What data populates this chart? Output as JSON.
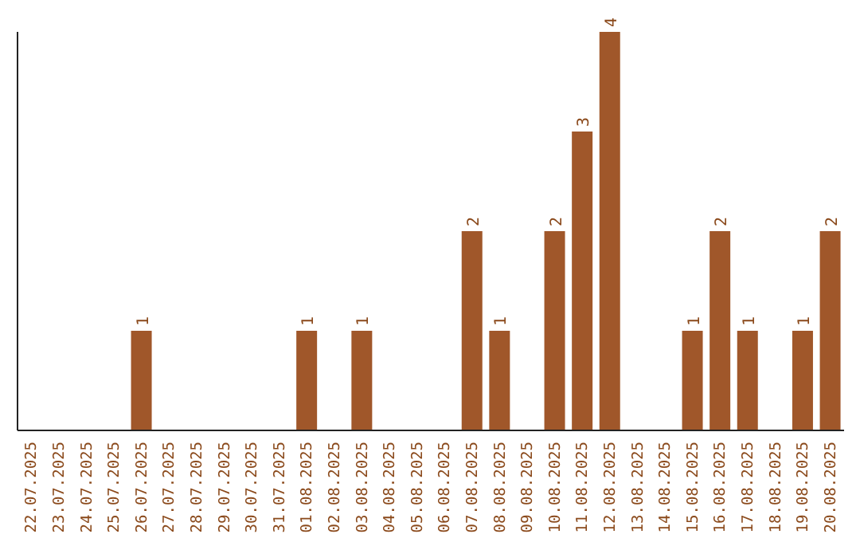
{
  "chart_data": {
    "type": "bar",
    "categories": [
      "22.07.2025",
      "23.07.2025",
      "24.07.2025",
      "25.07.2025",
      "26.07.2025",
      "27.07.2025",
      "28.07.2025",
      "29.07.2025",
      "30.07.2025",
      "31.07.2025",
      "01.08.2025",
      "02.08.2025",
      "03.08.2025",
      "04.08.2025",
      "05.08.2025",
      "06.08.2025",
      "07.08.2025",
      "08.08.2025",
      "09.08.2025",
      "10.08.2025",
      "11.08.2025",
      "12.08.2025",
      "13.08.2025",
      "14.08.2025",
      "15.08.2025",
      "16.08.2025",
      "17.08.2025",
      "18.08.2025",
      "19.08.2025",
      "20.08.2025"
    ],
    "values": [
      0,
      0,
      0,
      0,
      1,
      0,
      0,
      0,
      0,
      0,
      1,
      0,
      1,
      0,
      0,
      0,
      2,
      1,
      0,
      2,
      3,
      4,
      0,
      0,
      1,
      2,
      1,
      0,
      1,
      2
    ],
    "value_labels": [
      null,
      null,
      null,
      null,
      "1",
      null,
      null,
      null,
      null,
      null,
      "1",
      null,
      "1",
      null,
      null,
      null,
      "2",
      "1",
      null,
      "2",
      "3",
      "4",
      null,
      null,
      "1",
      "2",
      "1",
      null,
      "1",
      "2"
    ],
    "color": "#a0572a",
    "relative": false,
    "grid": false,
    "legend": false
  }
}
